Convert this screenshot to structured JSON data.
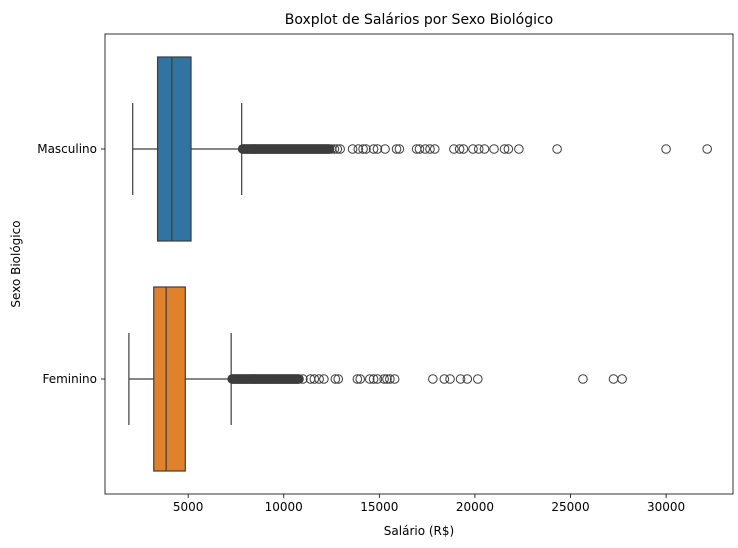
{
  "chart_data": {
    "type": "boxplot",
    "orientation": "horizontal",
    "title": "Boxplot de Salários por Sexo Biológico",
    "xlabel": "Salário (R$)",
    "ylabel": "Sexo Biológico",
    "xlim": [
      650,
      33500
    ],
    "xticks": [
      5000,
      10000,
      15000,
      20000,
      25000,
      30000
    ],
    "xtick_labels": [
      "5000",
      "10000",
      "15000",
      "20000",
      "25000",
      "30000"
    ],
    "grid": false,
    "categories": [
      "Masculino",
      "Feminino"
    ],
    "series": [
      {
        "category": "Masculino",
        "color": "#3274a1",
        "min": 2100,
        "q1": 3400,
        "median": 4150,
        "q3": 5150,
        "max": 7800,
        "dense_outlier_ranges": [
          [
            7850,
            12400
          ]
        ],
        "outliers": [
          12500,
          12650,
          12800,
          12950,
          13600,
          13900,
          14150,
          14300,
          14700,
          14900,
          15300,
          15900,
          16050,
          16950,
          17100,
          17400,
          17650,
          17900,
          18900,
          19200,
          19400,
          19900,
          20200,
          20500,
          21000,
          21550,
          21750,
          22300,
          24300,
          30000,
          32150
        ]
      },
      {
        "category": "Feminino",
        "color": "#e1812c",
        "min": 1900,
        "q1": 3200,
        "median": 3850,
        "q3": 4850,
        "max": 7250,
        "dense_outlier_ranges": [
          [
            7300,
            10800
          ]
        ],
        "outliers": [
          11000,
          11400,
          11600,
          11850,
          12100,
          12700,
          12850,
          13850,
          14000,
          14500,
          14700,
          14900,
          15250,
          15400,
          15550,
          15800,
          17800,
          18400,
          18700,
          19250,
          19600,
          20150,
          25650,
          27250,
          27700
        ]
      }
    ]
  }
}
